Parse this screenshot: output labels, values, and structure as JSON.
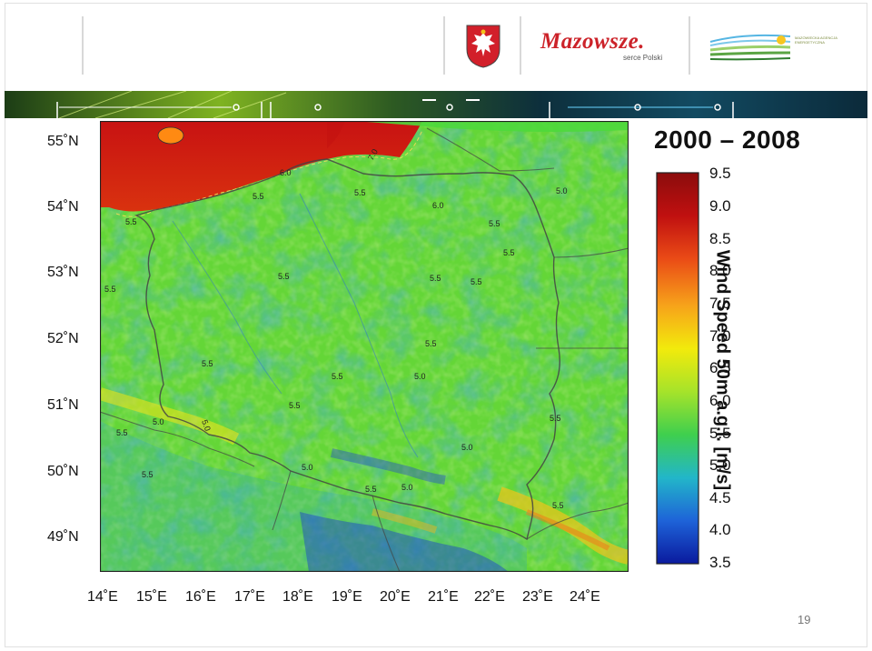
{
  "header": {
    "logos": [
      {
        "name": "mazovia-coat-of-arms",
        "text": ""
      },
      {
        "name": "mazowsze-logo",
        "text": "Mazowsze.",
        "subtext": "serce Polski"
      },
      {
        "name": "energy-agency-logo",
        "text": "MAZOWIECKA AGENCJA ENERGETYCZNA"
      }
    ]
  },
  "map": {
    "title": "2000 – 2008",
    "colorbar_title": "Wind Speed 50m a.g.l. [m/s]",
    "colorbar_ticks": [
      "9.5",
      "9.0",
      "8.5",
      "8.0",
      "7.5",
      "7.0",
      "6.5",
      "6.0",
      "5.5",
      "5.0",
      "4.5",
      "4.0",
      "3.5"
    ],
    "colorbar_range": [
      3.5,
      9.5
    ],
    "colorbar_colors": [
      "#0a1a9e",
      "#1e63d8",
      "#22b6c9",
      "#3fcf4e",
      "#a6e32a",
      "#f2ea0c",
      "#f7a31a",
      "#ea4b16",
      "#c01010",
      "#8b0c0c"
    ],
    "lat_labels": [
      "55˚N",
      "54˚N",
      "53˚N",
      "52˚N",
      "51˚N",
      "50˚N",
      "49˚N"
    ],
    "lon_labels": [
      "14˚E",
      "15˚E",
      "16˚E",
      "17˚E",
      "18˚E",
      "19˚E",
      "20˚E",
      "21˚E",
      "22˚E",
      "23˚E",
      "24˚E"
    ],
    "contour_labels": [
      "7.0",
      "6.0",
      "5.5",
      "5.5",
      "6.0",
      "5.5",
      "5.0",
      "5.5",
      "5.5",
      "5.5",
      "5.5",
      "5.5",
      "5.5",
      "5.5",
      "5.5",
      "5.5",
      "5.0",
      "5.5",
      "5.0",
      "5.0",
      "5.5",
      "5.0",
      "5.5",
      "5.0",
      "5.5",
      "5.0",
      "5.5",
      "5.5"
    ]
  },
  "footer": {
    "page_number": "19"
  }
}
